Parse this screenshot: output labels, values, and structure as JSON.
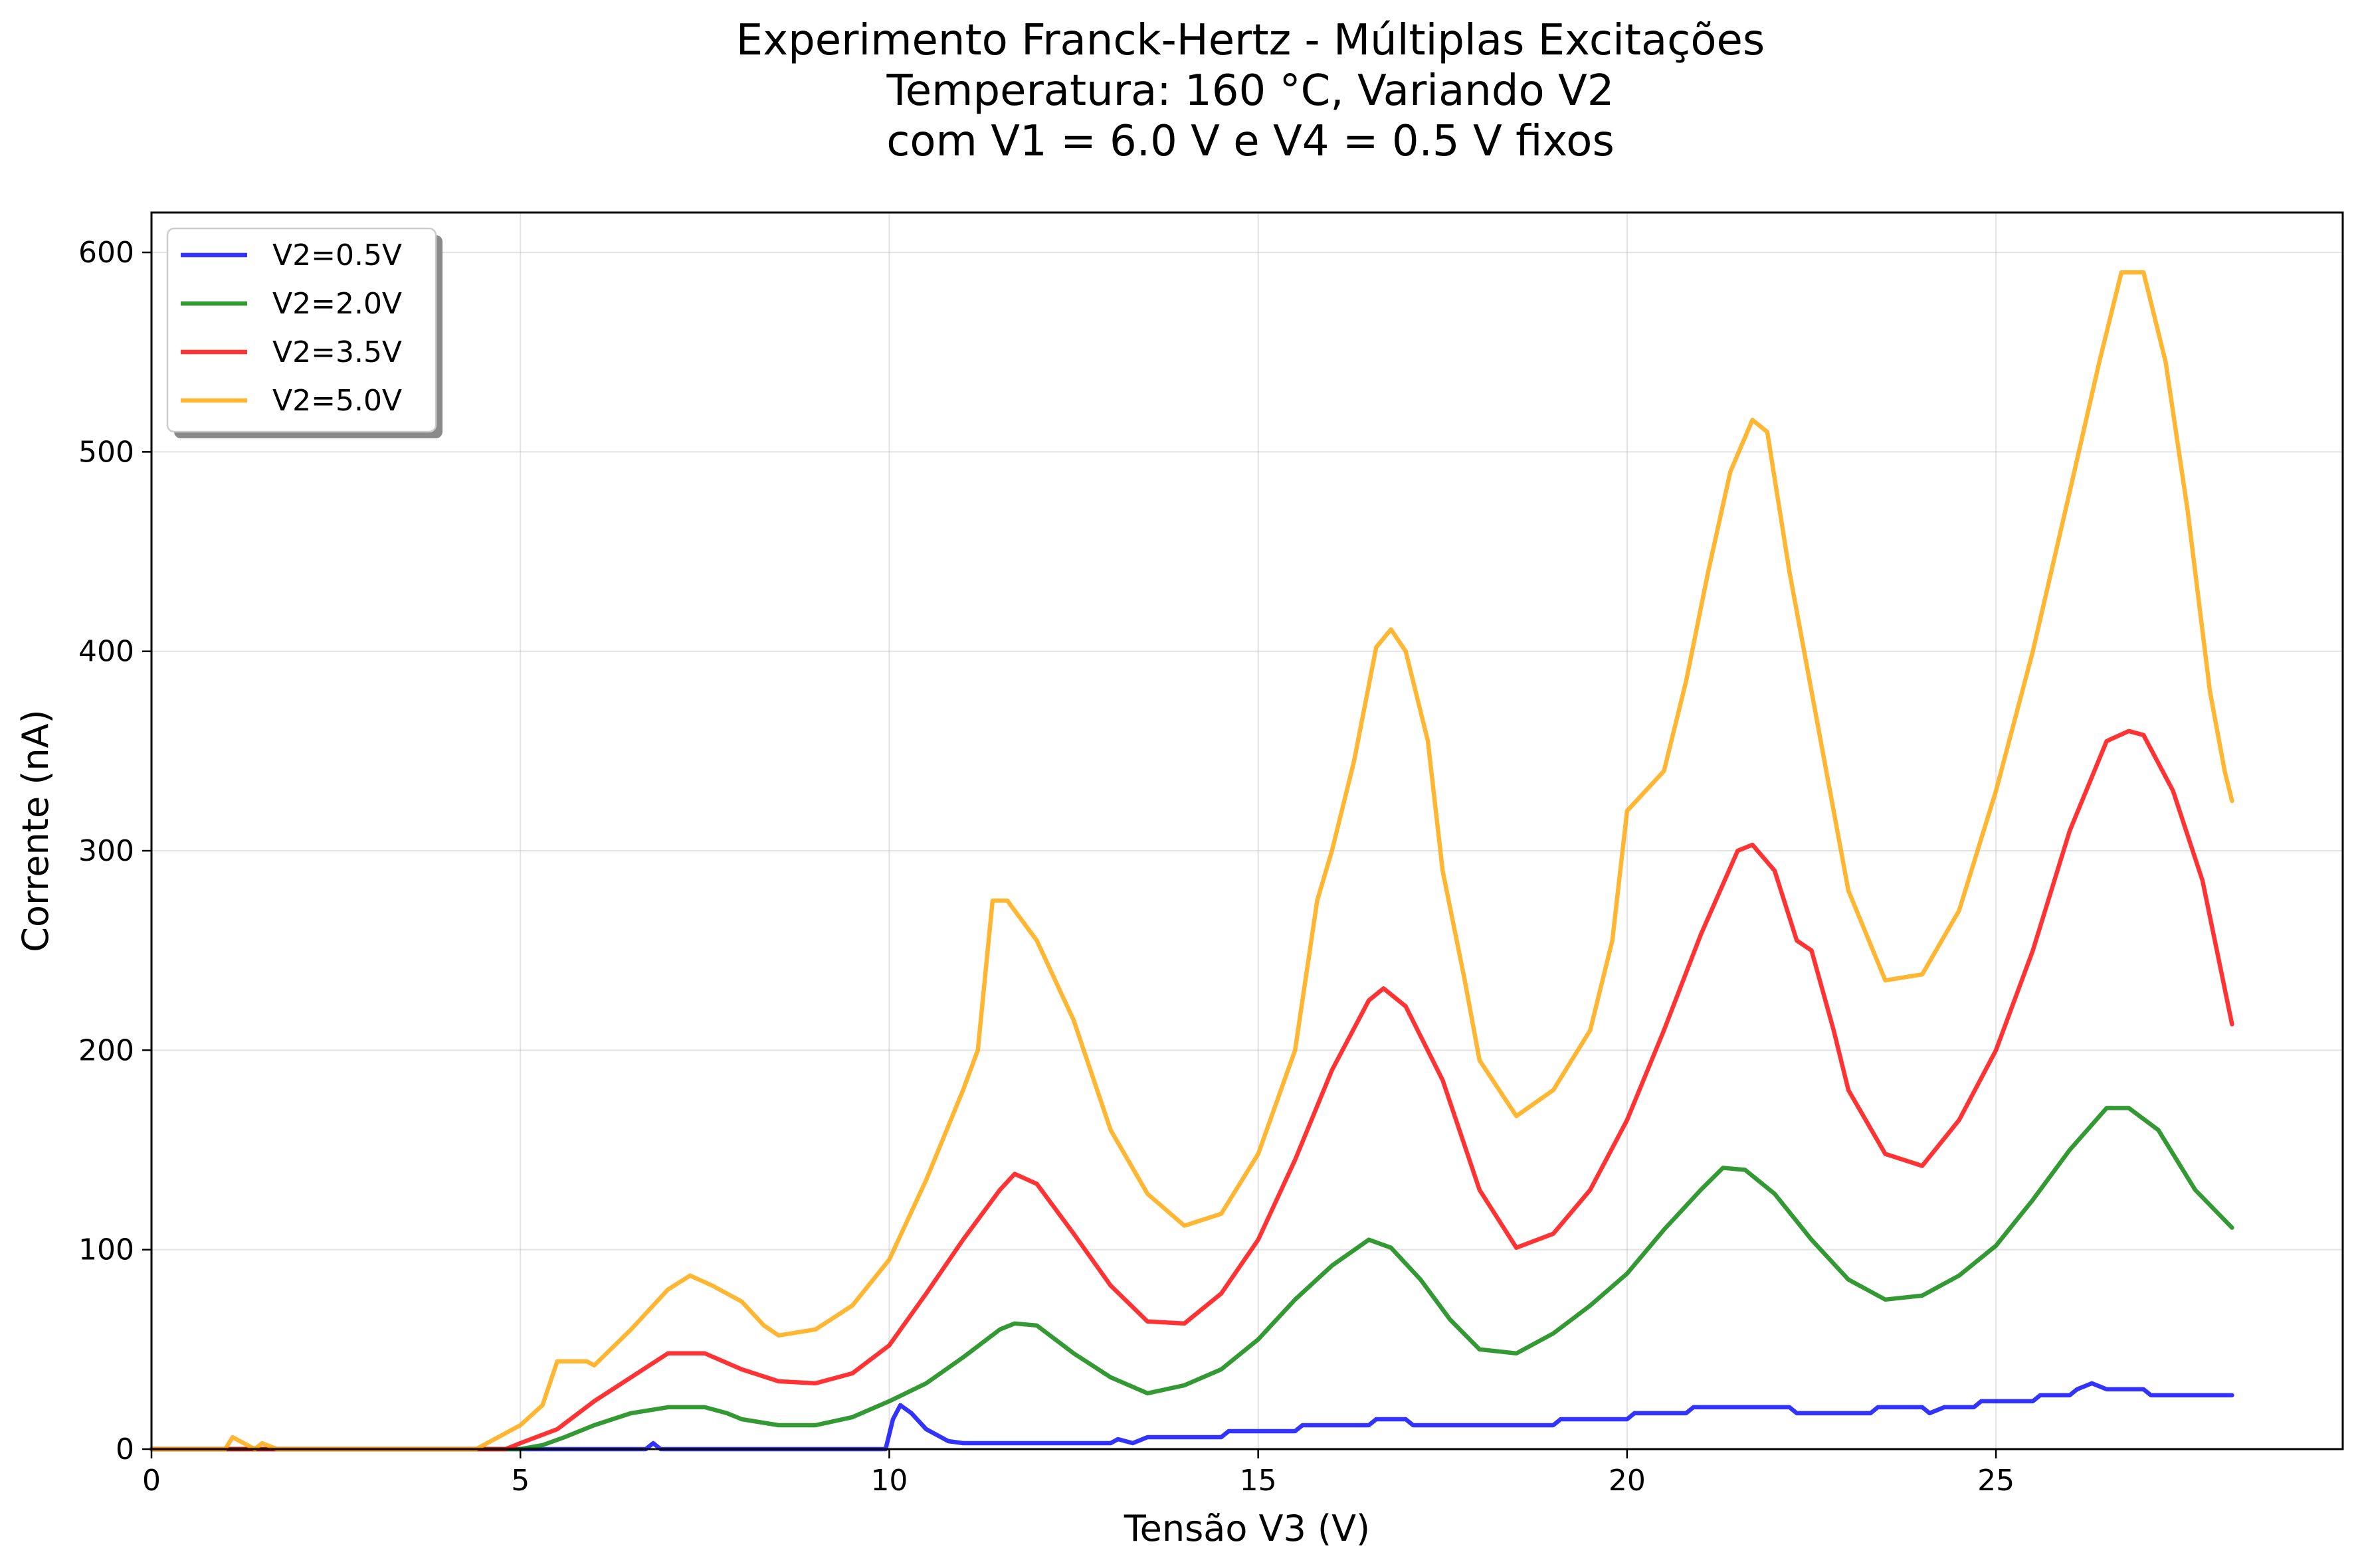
{
  "chart_data": {
    "type": "line",
    "title": [
      "Experimento Franck-Hertz - Múltiplas Excitações",
      "Temperatura: 160 °C, Variando V2",
      "com V1 = 6.0 V e V4 = 0.5 V fixos"
    ],
    "xlabel": "Tensão V3 (V)",
    "ylabel": "Corrente (nA)",
    "xlim": [
      0,
      29.7
    ],
    "ylim": [
      0,
      620
    ],
    "xticks": [
      0,
      5,
      10,
      15,
      20,
      25
    ],
    "yticks": [
      0,
      100,
      200,
      300,
      400,
      500,
      600
    ],
    "grid": true,
    "legend_position": "upper-left",
    "series": [
      {
        "name": "V2=0.5V",
        "color": "#0000ff",
        "points": [
          [
            0,
            0
          ],
          [
            5.0,
            0
          ],
          [
            6.7,
            0
          ],
          [
            6.8,
            3
          ],
          [
            6.9,
            0
          ],
          [
            9.95,
            0
          ],
          [
            10.05,
            15
          ],
          [
            10.15,
            22
          ],
          [
            10.3,
            18
          ],
          [
            10.5,
            10
          ],
          [
            10.8,
            4
          ],
          [
            11.0,
            3
          ],
          [
            13.0,
            3
          ],
          [
            13.1,
            5
          ],
          [
            13.3,
            3
          ],
          [
            13.5,
            6
          ],
          [
            14.5,
            6
          ],
          [
            14.6,
            9
          ],
          [
            15.5,
            9
          ],
          [
            15.6,
            12
          ],
          [
            16.5,
            12
          ],
          [
            16.6,
            15
          ],
          [
            17.0,
            15
          ],
          [
            17.1,
            12
          ],
          [
            19.0,
            12
          ],
          [
            19.1,
            15
          ],
          [
            20.0,
            15
          ],
          [
            20.1,
            18
          ],
          [
            20.8,
            18
          ],
          [
            20.9,
            21
          ],
          [
            22.2,
            21
          ],
          [
            22.3,
            18
          ],
          [
            23.3,
            18
          ],
          [
            23.4,
            21
          ],
          [
            24.0,
            21
          ],
          [
            24.1,
            18
          ],
          [
            24.3,
            21
          ],
          [
            24.7,
            21
          ],
          [
            24.8,
            24
          ],
          [
            25.5,
            24
          ],
          [
            25.6,
            27
          ],
          [
            26.0,
            27
          ],
          [
            26.1,
            30
          ],
          [
            26.3,
            33
          ],
          [
            26.5,
            30
          ],
          [
            27.0,
            30
          ],
          [
            27.1,
            27
          ],
          [
            28.2,
            27
          ]
        ]
      },
      {
        "name": "V2=2.0V",
        "color": "#008000",
        "points": [
          [
            0,
            0
          ],
          [
            5.0,
            0
          ],
          [
            5.3,
            2
          ],
          [
            5.6,
            6
          ],
          [
            6.0,
            12
          ],
          [
            6.5,
            18
          ],
          [
            7.0,
            21
          ],
          [
            7.5,
            21
          ],
          [
            7.8,
            18
          ],
          [
            8.0,
            15
          ],
          [
            8.5,
            12
          ],
          [
            9.0,
            12
          ],
          [
            9.5,
            16
          ],
          [
            10.0,
            24
          ],
          [
            10.5,
            33
          ],
          [
            11.0,
            46
          ],
          [
            11.5,
            60
          ],
          [
            11.7,
            63
          ],
          [
            12.0,
            62
          ],
          [
            12.5,
            48
          ],
          [
            13.0,
            36
          ],
          [
            13.5,
            28
          ],
          [
            14.0,
            32
          ],
          [
            14.5,
            40
          ],
          [
            15.0,
            55
          ],
          [
            15.5,
            75
          ],
          [
            16.0,
            92
          ],
          [
            16.5,
            105
          ],
          [
            16.8,
            101
          ],
          [
            17.2,
            85
          ],
          [
            17.6,
            65
          ],
          [
            18.0,
            50
          ],
          [
            18.5,
            48
          ],
          [
            19.0,
            58
          ],
          [
            19.5,
            72
          ],
          [
            20.0,
            88
          ],
          [
            20.5,
            110
          ],
          [
            21.0,
            130
          ],
          [
            21.3,
            141
          ],
          [
            21.6,
            140
          ],
          [
            22.0,
            128
          ],
          [
            22.5,
            105
          ],
          [
            23.0,
            85
          ],
          [
            23.5,
            75
          ],
          [
            24.0,
            77
          ],
          [
            24.5,
            87
          ],
          [
            25.0,
            102
          ],
          [
            25.5,
            125
          ],
          [
            26.0,
            150
          ],
          [
            26.5,
            171
          ],
          [
            26.8,
            171
          ],
          [
            27.2,
            160
          ],
          [
            27.7,
            130
          ],
          [
            28.2,
            111
          ]
        ]
      },
      {
        "name": "V2=3.5V",
        "color": "#ff0000",
        "points": [
          [
            0,
            0
          ],
          [
            4.8,
            0
          ],
          [
            5.0,
            3
          ],
          [
            5.5,
            10
          ],
          [
            6.0,
            24
          ],
          [
            6.5,
            36
          ],
          [
            7.0,
            48
          ],
          [
            7.5,
            48
          ],
          [
            8.0,
            40
          ],
          [
            8.5,
            34
          ],
          [
            9.0,
            33
          ],
          [
            9.5,
            38
          ],
          [
            10.0,
            52
          ],
          [
            10.5,
            78
          ],
          [
            11.0,
            105
          ],
          [
            11.5,
            130
          ],
          [
            11.7,
            138
          ],
          [
            12.0,
            133
          ],
          [
            12.5,
            108
          ],
          [
            13.0,
            82
          ],
          [
            13.5,
            64
          ],
          [
            14.0,
            63
          ],
          [
            14.5,
            78
          ],
          [
            15.0,
            105
          ],
          [
            15.5,
            145
          ],
          [
            16.0,
            190
          ],
          [
            16.5,
            225
          ],
          [
            16.7,
            231
          ],
          [
            17.0,
            222
          ],
          [
            17.5,
            185
          ],
          [
            18.0,
            130
          ],
          [
            18.5,
            101
          ],
          [
            19.0,
            108
          ],
          [
            19.5,
            130
          ],
          [
            20.0,
            165
          ],
          [
            20.5,
            210
          ],
          [
            21.0,
            258
          ],
          [
            21.5,
            300
          ],
          [
            21.7,
            303
          ],
          [
            22.0,
            290
          ],
          [
            22.3,
            255
          ],
          [
            22.5,
            250
          ],
          [
            22.8,
            210
          ],
          [
            23.0,
            180
          ],
          [
            23.5,
            148
          ],
          [
            24.0,
            142
          ],
          [
            24.5,
            165
          ],
          [
            25.0,
            200
          ],
          [
            25.5,
            250
          ],
          [
            26.0,
            310
          ],
          [
            26.5,
            355
          ],
          [
            26.8,
            360
          ],
          [
            27.0,
            358
          ],
          [
            27.4,
            330
          ],
          [
            27.8,
            285
          ],
          [
            28.2,
            213
          ]
        ]
      },
      {
        "name": "V2=5.0V",
        "color": "#ffa500",
        "points": [
          [
            0,
            0
          ],
          [
            1.0,
            0
          ],
          [
            1.1,
            6
          ],
          [
            1.3,
            2
          ],
          [
            1.4,
            0
          ],
          [
            1.5,
            3
          ],
          [
            1.7,
            0
          ],
          [
            4.4,
            0
          ],
          [
            4.6,
            4
          ],
          [
            5.0,
            12
          ],
          [
            5.3,
            22
          ],
          [
            5.5,
            44
          ],
          [
            5.9,
            44
          ],
          [
            6.0,
            42
          ],
          [
            6.5,
            60
          ],
          [
            7.0,
            80
          ],
          [
            7.3,
            87
          ],
          [
            7.6,
            82
          ],
          [
            8.0,
            74
          ],
          [
            8.3,
            62
          ],
          [
            8.5,
            57
          ],
          [
            9.0,
            60
          ],
          [
            9.5,
            72
          ],
          [
            10.0,
            95
          ],
          [
            10.5,
            135
          ],
          [
            11.0,
            180
          ],
          [
            11.2,
            200
          ],
          [
            11.4,
            275
          ],
          [
            11.6,
            275
          ],
          [
            12.0,
            255
          ],
          [
            12.5,
            215
          ],
          [
            13.0,
            160
          ],
          [
            13.5,
            128
          ],
          [
            14.0,
            112
          ],
          [
            14.5,
            118
          ],
          [
            15.0,
            148
          ],
          [
            15.5,
            200
          ],
          [
            15.8,
            275
          ],
          [
            16.0,
            300
          ],
          [
            16.3,
            345
          ],
          [
            16.6,
            402
          ],
          [
            16.8,
            411
          ],
          [
            17.0,
            400
          ],
          [
            17.3,
            355
          ],
          [
            17.5,
            290
          ],
          [
            17.8,
            235
          ],
          [
            18.0,
            195
          ],
          [
            18.5,
            167
          ],
          [
            19.0,
            180
          ],
          [
            19.5,
            210
          ],
          [
            19.8,
            255
          ],
          [
            20.0,
            320
          ],
          [
            20.5,
            340
          ],
          [
            20.8,
            385
          ],
          [
            21.1,
            440
          ],
          [
            21.4,
            490
          ],
          [
            21.7,
            516
          ],
          [
            21.9,
            510
          ],
          [
            22.2,
            440
          ],
          [
            22.5,
            380
          ],
          [
            22.8,
            320
          ],
          [
            23.0,
            280
          ],
          [
            23.5,
            235
          ],
          [
            24.0,
            238
          ],
          [
            24.5,
            270
          ],
          [
            25.0,
            330
          ],
          [
            25.5,
            400
          ],
          [
            26.0,
            480
          ],
          [
            26.4,
            545
          ],
          [
            26.7,
            590
          ],
          [
            27.0,
            590
          ],
          [
            27.3,
            545
          ],
          [
            27.6,
            470
          ],
          [
            27.9,
            380
          ],
          [
            28.1,
            340
          ],
          [
            28.2,
            325
          ]
        ]
      }
    ]
  }
}
